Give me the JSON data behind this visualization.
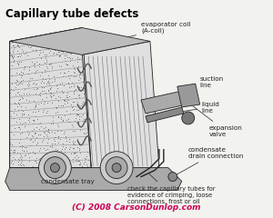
{
  "title": "Capillary tube defects",
  "copyright": "(C) 2008 CarsonDunlop.com",
  "bg_color": "#f2f2ee",
  "title_color": "#000000",
  "copyright_color": "#cc0055",
  "labels": {
    "evaporator_coil": "evaporator coil\n(A-coil)",
    "suction_line": "suction\nline",
    "liquid_line": "liquid\nline",
    "expansion_valve": "expansion\nvalve",
    "condensate_tray": "condensate tray",
    "condensate_drain": "condensate\ndrain connection",
    "capillary_check": "check the capillary tubes for\nevidence of crimping, loose\nconnections, frost or oil"
  },
  "label_fontsize": 5.2,
  "title_fontsize": 8.5
}
